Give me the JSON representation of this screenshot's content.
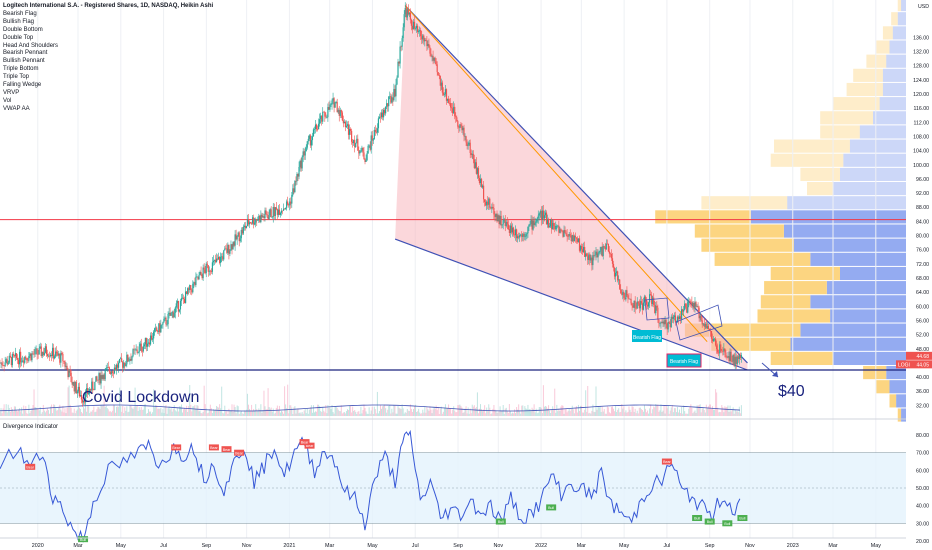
{
  "header": {
    "title": "Logitech International S.A. - Registered Shares, 1D, NASDAQ, Heikin Ashi",
    "indicators": [
      "Bearish Flag",
      "Bullish Flag",
      "Double Bottom",
      "Double Top",
      "Head And Shoulders",
      "Bearish Pennant",
      "Bullish Pennant",
      "Triple Bottom",
      "Triple Top",
      "Falling Wedge",
      "VRVP",
      "Vol",
      "VWAP AA"
    ]
  },
  "annotations": {
    "covid": "Covid Lockdown",
    "target": "$40",
    "flag1": "Bearish Flag",
    "flag2": "Bearish Flag"
  },
  "price_tags": {
    "a": "44.68",
    "b": "44.05",
    "sym": "LOGI"
  },
  "oscillator": {
    "title": "Divergence Indicator",
    "bear_label": "Bear",
    "bull_label": "Bull",
    "yticks": [
      "80.00",
      "70.00",
      "60.00",
      "50.00",
      "40.00",
      "30.00",
      "20.00"
    ]
  },
  "colors": {
    "up": "#26a69a",
    "down": "#ef5350",
    "wedge": "#f7b7bd",
    "line": "#3f51b5",
    "red_hline": "#f23645",
    "osc": "#3758d6",
    "vol_up": "#fcd37a",
    "vol_dn": "#8ea6f0"
  },
  "chart_data": {
    "type": "candlestick",
    "currency": "USD",
    "price_ylim": [
      29,
      146
    ],
    "price_yticks": [
      "USD",
      "136.00",
      "132.00",
      "128.00",
      "124.00",
      "120.00",
      "116.00",
      "112.00",
      "108.00",
      "104.00",
      "100.00",
      "96.00",
      "92.00",
      "88.00",
      "84.00",
      "80.00",
      "76.00",
      "72.00",
      "68.00",
      "64.00",
      "60.00",
      "56.00",
      "52.00",
      "48.00",
      "44.00",
      "40.00",
      "36.00",
      "32.00"
    ],
    "x_labels": [
      "2020",
      "Mar",
      "May",
      "Jul",
      "Sep",
      "Nov",
      "2021",
      "Mar",
      "May",
      "Jul",
      "Sep",
      "Nov",
      "2022",
      "Mar",
      "May",
      "Jul",
      "Sep",
      "Nov",
      "2023",
      "Mar",
      "May"
    ],
    "price_path": [
      [
        2019.85,
        44
      ],
      [
        2019.96,
        46
      ],
      [
        2020.04,
        47.5
      ],
      [
        2020.1,
        45
      ],
      [
        2020.14,
        38
      ],
      [
        2020.18,
        34
      ],
      [
        2020.26,
        41
      ],
      [
        2020.34,
        44
      ],
      [
        2020.42,
        49
      ],
      [
        2020.5,
        55
      ],
      [
        2020.58,
        62
      ],
      [
        2020.66,
        70
      ],
      [
        2020.72,
        73
      ],
      [
        2020.8,
        80
      ],
      [
        2020.84,
        84
      ],
      [
        2020.92,
        86
      ],
      [
        2021.0,
        89
      ],
      [
        2021.06,
        104
      ],
      [
        2021.12,
        112
      ],
      [
        2021.18,
        118
      ],
      [
        2021.24,
        109
      ],
      [
        2021.3,
        102
      ],
      [
        2021.36,
        113
      ],
      [
        2021.42,
        121
      ],
      [
        2021.46,
        144
      ],
      [
        2021.5,
        138
      ],
      [
        2021.55,
        134
      ],
      [
        2021.6,
        123
      ],
      [
        2021.66,
        114
      ],
      [
        2021.72,
        104
      ],
      [
        2021.78,
        90
      ],
      [
        2021.84,
        84
      ],
      [
        2021.92,
        80
      ],
      [
        2022.0,
        86
      ],
      [
        2022.06,
        82
      ],
      [
        2022.12,
        80
      ],
      [
        2022.2,
        73
      ],
      [
        2022.26,
        77
      ],
      [
        2022.32,
        64
      ],
      [
        2022.38,
        60
      ],
      [
        2022.44,
        62
      ],
      [
        2022.48,
        54
      ],
      [
        2022.54,
        57
      ],
      [
        2022.6,
        61
      ],
      [
        2022.66,
        54
      ],
      [
        2022.7,
        48
      ],
      [
        2022.76,
        45
      ],
      [
        2022.8,
        44.5
      ]
    ],
    "horizontal_lines": [
      84.5,
      42.0
    ],
    "wedge": {
      "upper": [
        [
          2021.46,
          145
        ],
        [
          2022.82,
          44
        ]
      ],
      "lower": [
        [
          2021.42,
          79
        ],
        [
          2022.82,
          42
        ]
      ],
      "midline": [
        [
          2021.46,
          145
        ],
        [
          2022.66,
          50
        ]
      ]
    },
    "volume_profile": [
      {
        "p": 146,
        "up": 2,
        "dn": 3
      },
      {
        "p": 142,
        "up": 4,
        "dn": 5
      },
      {
        "p": 138,
        "up": 6,
        "dn": 8
      },
      {
        "p": 134,
        "up": 8,
        "dn": 10
      },
      {
        "p": 130,
        "up": 12,
        "dn": 12
      },
      {
        "p": 126,
        "up": 18,
        "dn": 14
      },
      {
        "p": 122,
        "up": 22,
        "dn": 14
      },
      {
        "p": 118,
        "up": 28,
        "dn": 16
      },
      {
        "p": 114,
        "up": 32,
        "dn": 20
      },
      {
        "p": 110,
        "up": 24,
        "dn": 28
      },
      {
        "p": 106,
        "up": 46,
        "dn": 34
      },
      {
        "p": 102,
        "up": 44,
        "dn": 38
      },
      {
        "p": 98,
        "up": 24,
        "dn": 40
      },
      {
        "p": 94,
        "up": 16,
        "dn": 44
      },
      {
        "p": 90,
        "up": 52,
        "dn": 72
      },
      {
        "p": 86,
        "up": 58,
        "dn": 94
      },
      {
        "p": 82,
        "up": 54,
        "dn": 74
      },
      {
        "p": 78,
        "up": 56,
        "dn": 68
      },
      {
        "p": 74,
        "up": 58,
        "dn": 58
      },
      {
        "p": 70,
        "up": 42,
        "dn": 40
      },
      {
        "p": 66,
        "up": 38,
        "dn": 48
      },
      {
        "p": 62,
        "up": 30,
        "dn": 58
      },
      {
        "p": 58,
        "up": 44,
        "dn": 46
      },
      {
        "p": 54,
        "up": 70,
        "dn": 64
      },
      {
        "p": 50,
        "up": 48,
        "dn": 70
      },
      {
        "p": 46,
        "up": 38,
        "dn": 44
      },
      {
        "p": 42,
        "up": 14,
        "dn": 12
      },
      {
        "p": 38,
        "up": 8,
        "dn": 10
      },
      {
        "p": 34,
        "up": 4,
        "dn": 6
      },
      {
        "p": 30,
        "up": 2,
        "dn": 3
      }
    ],
    "oscillator_ylim": [
      16,
      84
    ],
    "oscillator_band": [
      30,
      70
    ],
    "oscillator_path": [
      [
        2019.85,
        64
      ],
      [
        2019.92,
        72
      ],
      [
        2019.97,
        62
      ],
      [
        2020.02,
        70
      ],
      [
        2020.06,
        45
      ],
      [
        2020.1,
        38
      ],
      [
        2020.14,
        26
      ],
      [
        2020.18,
        21
      ],
      [
        2020.22,
        42
      ],
      [
        2020.28,
        60
      ],
      [
        2020.34,
        64
      ],
      [
        2020.4,
        70
      ],
      [
        2020.44,
        74
      ],
      [
        2020.48,
        64
      ],
      [
        2020.54,
        72
      ],
      [
        2020.58,
        69
      ],
      [
        2020.62,
        73
      ],
      [
        2020.66,
        55
      ],
      [
        2020.7,
        64
      ],
      [
        2020.74,
        49
      ],
      [
        2020.78,
        64
      ],
      [
        2020.82,
        74
      ],
      [
        2020.86,
        54
      ],
      [
        2020.9,
        62
      ],
      [
        2020.94,
        74
      ],
      [
        2020.98,
        57
      ],
      [
        2021.02,
        70
      ],
      [
        2021.06,
        76
      ],
      [
        2021.1,
        60
      ],
      [
        2021.14,
        71
      ],
      [
        2021.18,
        66
      ],
      [
        2021.22,
        48
      ],
      [
        2021.26,
        44
      ],
      [
        2021.3,
        30
      ],
      [
        2021.34,
        56
      ],
      [
        2021.38,
        68
      ],
      [
        2021.42,
        54
      ],
      [
        2021.45,
        75
      ],
      [
        2021.48,
        82
      ],
      [
        2021.52,
        42
      ],
      [
        2021.56,
        54
      ],
      [
        2021.6,
        33
      ],
      [
        2021.64,
        38
      ],
      [
        2021.68,
        35
      ],
      [
        2021.72,
        43
      ],
      [
        2021.76,
        36
      ],
      [
        2021.8,
        40
      ],
      [
        2021.84,
        31
      ],
      [
        2021.88,
        44
      ],
      [
        2021.92,
        33
      ],
      [
        2021.96,
        36
      ],
      [
        2022.0,
        42
      ],
      [
        2022.04,
        58
      ],
      [
        2022.08,
        47
      ],
      [
        2022.12,
        52
      ],
      [
        2022.16,
        50
      ],
      [
        2022.2,
        45
      ],
      [
        2022.24,
        58
      ],
      [
        2022.28,
        40
      ],
      [
        2022.32,
        36
      ],
      [
        2022.36,
        30
      ],
      [
        2022.4,
        44
      ],
      [
        2022.44,
        52
      ],
      [
        2022.48,
        54
      ],
      [
        2022.52,
        65
      ],
      [
        2022.56,
        48
      ],
      [
        2022.6,
        45
      ],
      [
        2022.64,
        39
      ],
      [
        2022.68,
        34
      ],
      [
        2022.72,
        46
      ],
      [
        2022.76,
        38
      ],
      [
        2022.8,
        41
      ]
    ]
  }
}
